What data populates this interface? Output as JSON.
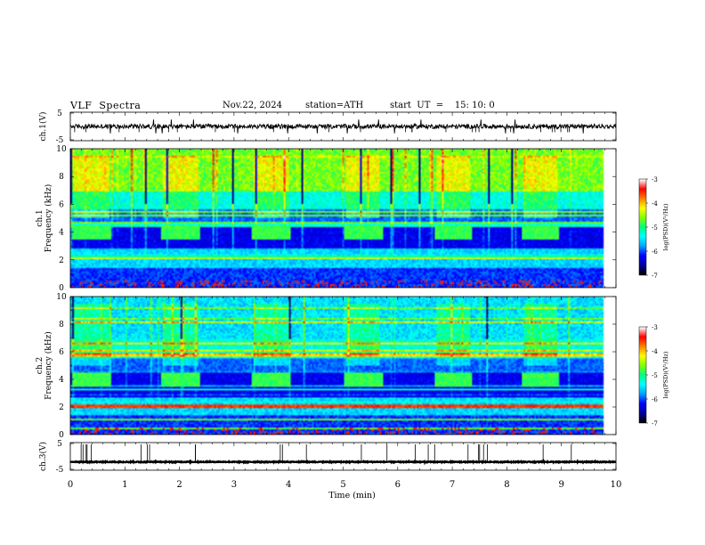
{
  "header": {
    "title": "VLF  Spectra",
    "date": "Nov.22, 2024",
    "station": "station=ATH",
    "start": "start  UT  =    15: 10: 0"
  },
  "colors": {
    "waveform": "#000000",
    "colormap": [
      "#000000",
      "#0000a0",
      "#0000ff",
      "#00a0ff",
      "#00ffff",
      "#00ff80",
      "#80ff00",
      "#ffff00",
      "#ff8000",
      "#ff0000",
      "#ffffff"
    ]
  },
  "chart_data": [
    {
      "type": "line",
      "panel": "ch1-waveform",
      "ylabel": "ch.1(V)",
      "ylim": [
        -5,
        5
      ],
      "yticks": [
        "5",
        "-5"
      ],
      "xlim": [
        0,
        10
      ],
      "mean": 0,
      "amplitude": 0.8
    },
    {
      "type": "heatmap",
      "panel": "ch1-spectrogram",
      "ylabel_top": "ch.1",
      "ylabel": "Frequency  (kHz)",
      "ylim": [
        0,
        10
      ],
      "yticks": [
        "0",
        "2",
        "4",
        "6",
        "8",
        "10"
      ],
      "xlim": [
        0,
        10
      ],
      "colorbar": {
        "label": "log(PSD)(V²/Hz)",
        "range": [
          -7,
          -3
        ],
        "ticks": [
          "-3",
          "-4",
          "-5",
          "-6",
          "-7"
        ]
      },
      "bursts_min": [
        0.38,
        2.01,
        3.68,
        5.37,
        7.02,
        8.63
      ],
      "burst_band_khz": [
        3.5,
        4.5
      ]
    },
    {
      "type": "heatmap",
      "panel": "ch2-spectrogram",
      "ylabel_top": "ch.2",
      "ylabel": "Frequency  (kHz)",
      "ylim": [
        0,
        10
      ],
      "yticks": [
        "0",
        "2",
        "4",
        "6",
        "8",
        "10"
      ],
      "xlim": [
        0,
        10
      ],
      "colorbar": {
        "label": "log(PSD)(V²/Hz)",
        "range": [
          -7,
          -3
        ],
        "ticks": [
          "-3",
          "-4",
          "-5",
          "-6",
          "-7"
        ]
      },
      "bursts_min": [
        0.38,
        2.01,
        3.68,
        5.37,
        7.02,
        8.63
      ],
      "burst_band_khz": [
        3.5,
        4.5
      ],
      "line_khz": 2.0
    },
    {
      "type": "line",
      "panel": "ch3-waveform",
      "ylabel": "ch.3(V)",
      "ylim": [
        -5,
        5
      ],
      "yticks": [
        "5",
        "-5"
      ],
      "xlim": [
        0,
        10
      ],
      "mean": -2,
      "amplitude": 0.15
    }
  ],
  "xaxis": {
    "label": "Time  (min)",
    "ticks": [
      "0",
      "1",
      "2",
      "3",
      "4",
      "5",
      "6",
      "7",
      "8",
      "9",
      "10"
    ]
  }
}
